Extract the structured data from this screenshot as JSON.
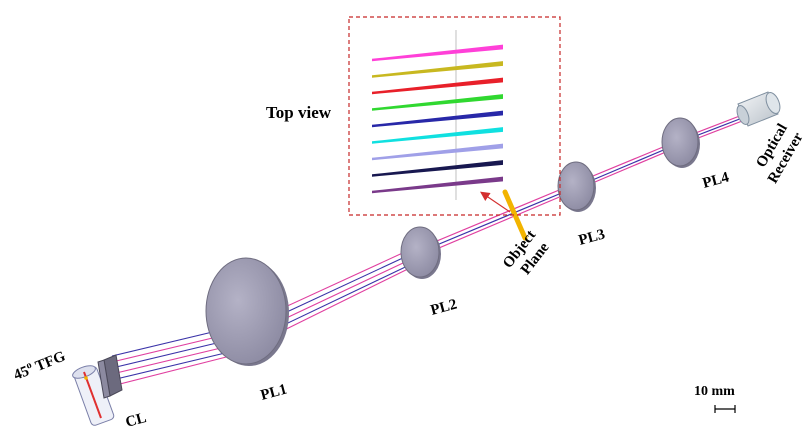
{
  "labels": {
    "top_view": "Top view",
    "tfg": "45",
    "tfg_sup": "o",
    "tfg_suffix": " TFG",
    "cl": "CL",
    "pl1": "PL1",
    "pl2": "PL2",
    "pl3": "PL3",
    "pl4": "PL4",
    "object_line1": "Object",
    "object_line2": "Plane",
    "receiver_line1": "Optical",
    "receiver_line2": "Receiver",
    "scale": "10 mm"
  },
  "colors": {
    "lens": "#9896ab",
    "lens_edge": "#6f6d80",
    "object_plane": "#f2b400",
    "dashed_box": "#c62828",
    "arrow": "#d32f2f",
    "beam_pink": "#e040a0",
    "beam_blue": "#3a33a8",
    "top_view_lines": [
      "#ff40d8",
      "#c8b820",
      "#e8202a",
      "#30d830",
      "#2828a8",
      "#10e0e0",
      "#a0a0e8",
      "#181850",
      "#7a3a8a"
    ]
  }
}
